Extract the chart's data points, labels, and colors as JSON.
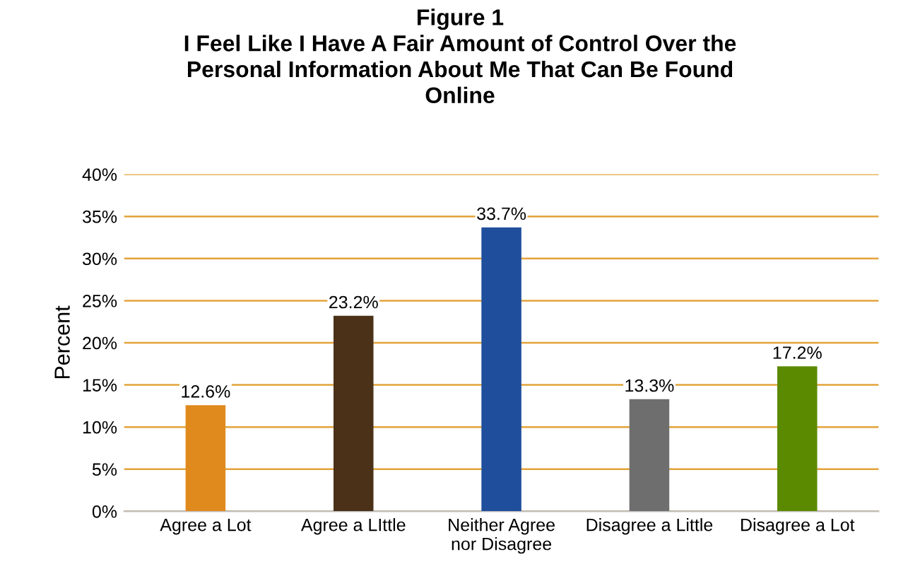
{
  "chart_data": {
    "type": "bar",
    "title": "Figure 1\nI Feel Like I Have A Fair Amount of Control Over the\nPersonal Information About Me That Can Be Found\nOnline",
    "ylabel": "Percent",
    "categories": [
      "Agree a Lot",
      "Agree a LIttle",
      "Neither Agree\nnor Disagree",
      "Disagree a Little",
      "Disagree a Lot"
    ],
    "values": [
      12.6,
      23.2,
      33.7,
      13.3,
      17.2
    ],
    "value_labels": [
      "12.6%",
      "23.2%",
      "33.7%",
      "13.3%",
      "17.2%"
    ],
    "colors": [
      "#e08a1e",
      "#4a3118",
      "#1f4e9c",
      "#6e6e6e",
      "#5b8a00"
    ],
    "ylim": [
      0,
      40
    ],
    "yticks": [
      {
        "value": 0,
        "label": "0%"
      },
      {
        "value": 5,
        "label": "5%"
      },
      {
        "value": 10,
        "label": "10%"
      },
      {
        "value": 15,
        "label": "15%"
      },
      {
        "value": 20,
        "label": "20%"
      },
      {
        "value": 25,
        "label": "25%"
      },
      {
        "value": 30,
        "label": "30%"
      },
      {
        "value": 35,
        "label": "35%"
      },
      {
        "value": 40,
        "label": "40%"
      }
    ],
    "grid": "y"
  }
}
